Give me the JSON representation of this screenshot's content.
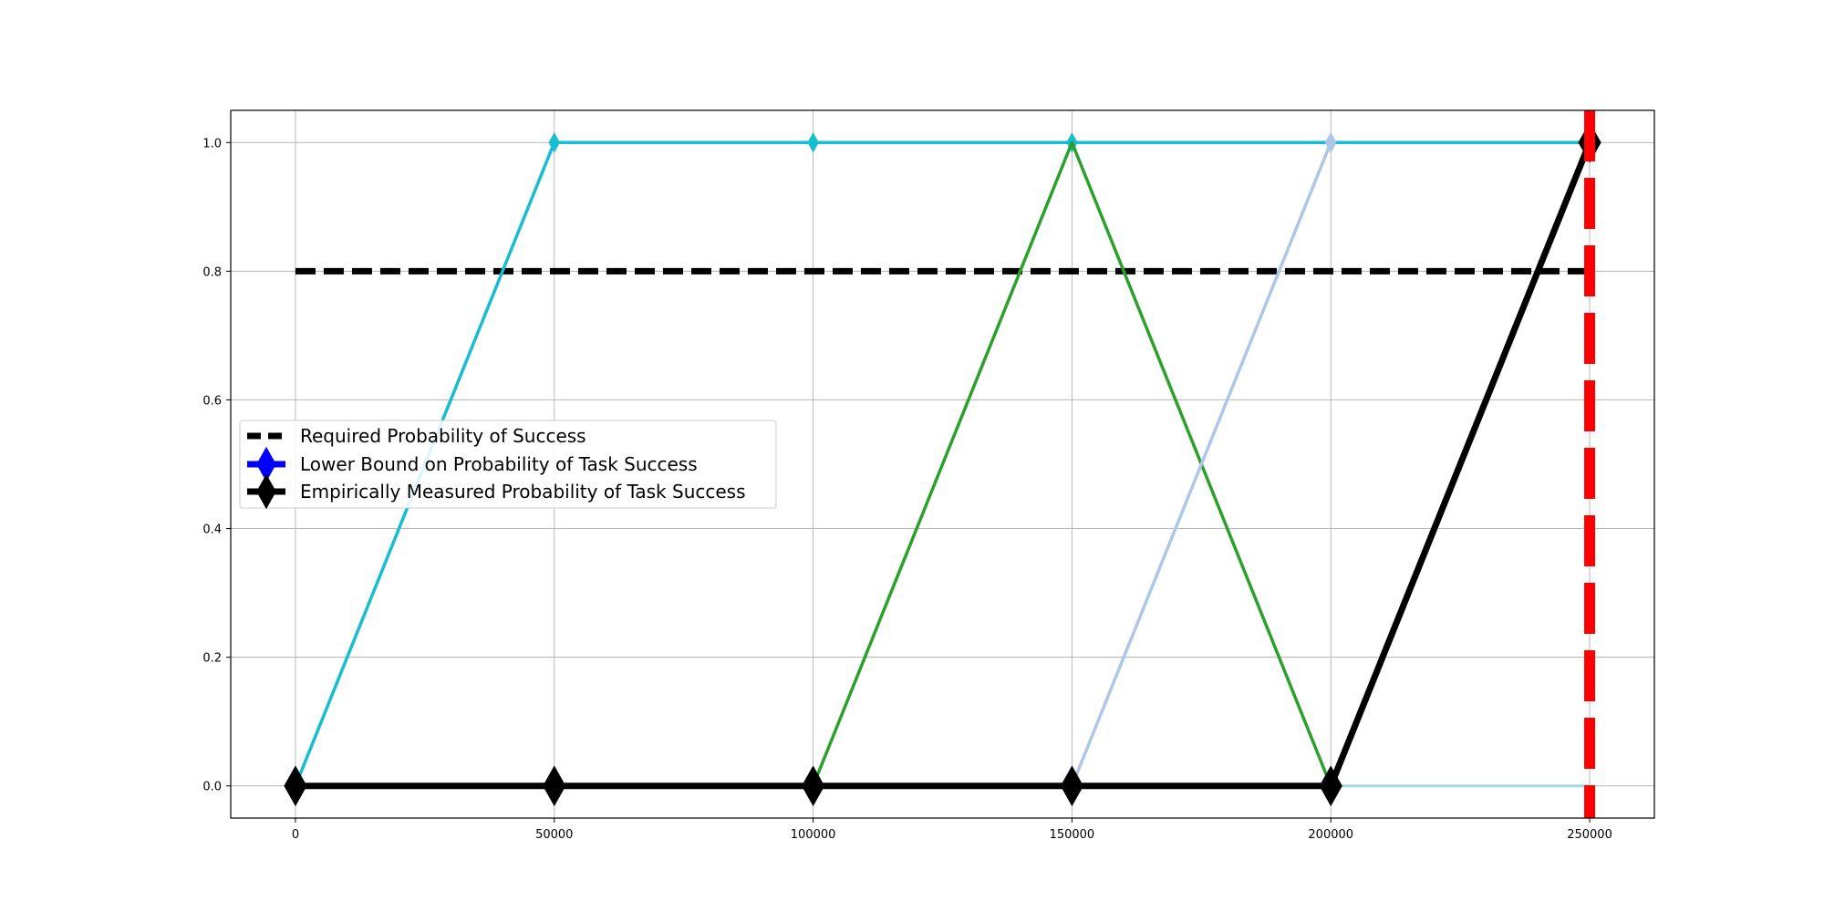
{
  "chart_data": {
    "type": "line",
    "title": "",
    "xlabel": "",
    "ylabel": "",
    "xlim": [
      -12500,
      262500
    ],
    "ylim": [
      -0.05,
      1.05
    ],
    "x_ticks": [
      0,
      50000,
      100000,
      150000,
      200000,
      250000
    ],
    "x_tick_labels": [
      "0",
      "50000",
      "100000",
      "150000",
      "200000",
      "250000"
    ],
    "y_ticks": [
      0.0,
      0.2,
      0.4,
      0.6,
      0.8,
      1.0
    ],
    "y_tick_labels": [
      "0.0",
      "0.2",
      "0.4",
      "0.6",
      "0.8",
      "1.0"
    ],
    "grid": true,
    "legend_placement": "center-left",
    "legend": [
      {
        "label": "Required Probability of Success",
        "color": "#000000",
        "style": "dashed"
      },
      {
        "label": "Lower Bound on Probability of Task Success",
        "color": "#0000ff",
        "marker": "diamond"
      },
      {
        "label": "Empirically Measured Probability of Task Success",
        "color": "#000000",
        "marker": "diamond"
      }
    ],
    "required_probability": {
      "x": [
        0,
        250000
      ],
      "y": [
        0.8,
        0.8
      ],
      "color": "#000000"
    },
    "vertical_marker": {
      "x": 250000,
      "color": "#ff0000"
    },
    "series": [
      {
        "x": [
          0,
          50000,
          100000,
          150000,
          200000,
          250000
        ],
        "y": [
          0,
          1,
          1,
          1,
          1,
          1
        ],
        "color": "#17becf",
        "width": 3.5,
        "marker": "diamond",
        "marker_size": 7
      },
      {
        "x": [
          100000,
          150000,
          200000
        ],
        "y": [
          0,
          1,
          0
        ],
        "color": "#2ca02c",
        "width": 3.5
      },
      {
        "x": [
          150000,
          200000
        ],
        "y": [
          0,
          1
        ],
        "color": "#aec7e8",
        "width": 3.5,
        "marker": "diamond",
        "marker_size": 7
      },
      {
        "x": [
          200000,
          250000
        ],
        "y": [
          0,
          0
        ],
        "color": "#9edae5",
        "width": 3
      },
      {
        "x": [
          0,
          50000,
          100000,
          150000,
          200000,
          250000
        ],
        "y": [
          0,
          0,
          0,
          0,
          0,
          1
        ],
        "color": "#000000",
        "width": 7,
        "marker": "diamond",
        "marker_size": 14
      }
    ]
  }
}
